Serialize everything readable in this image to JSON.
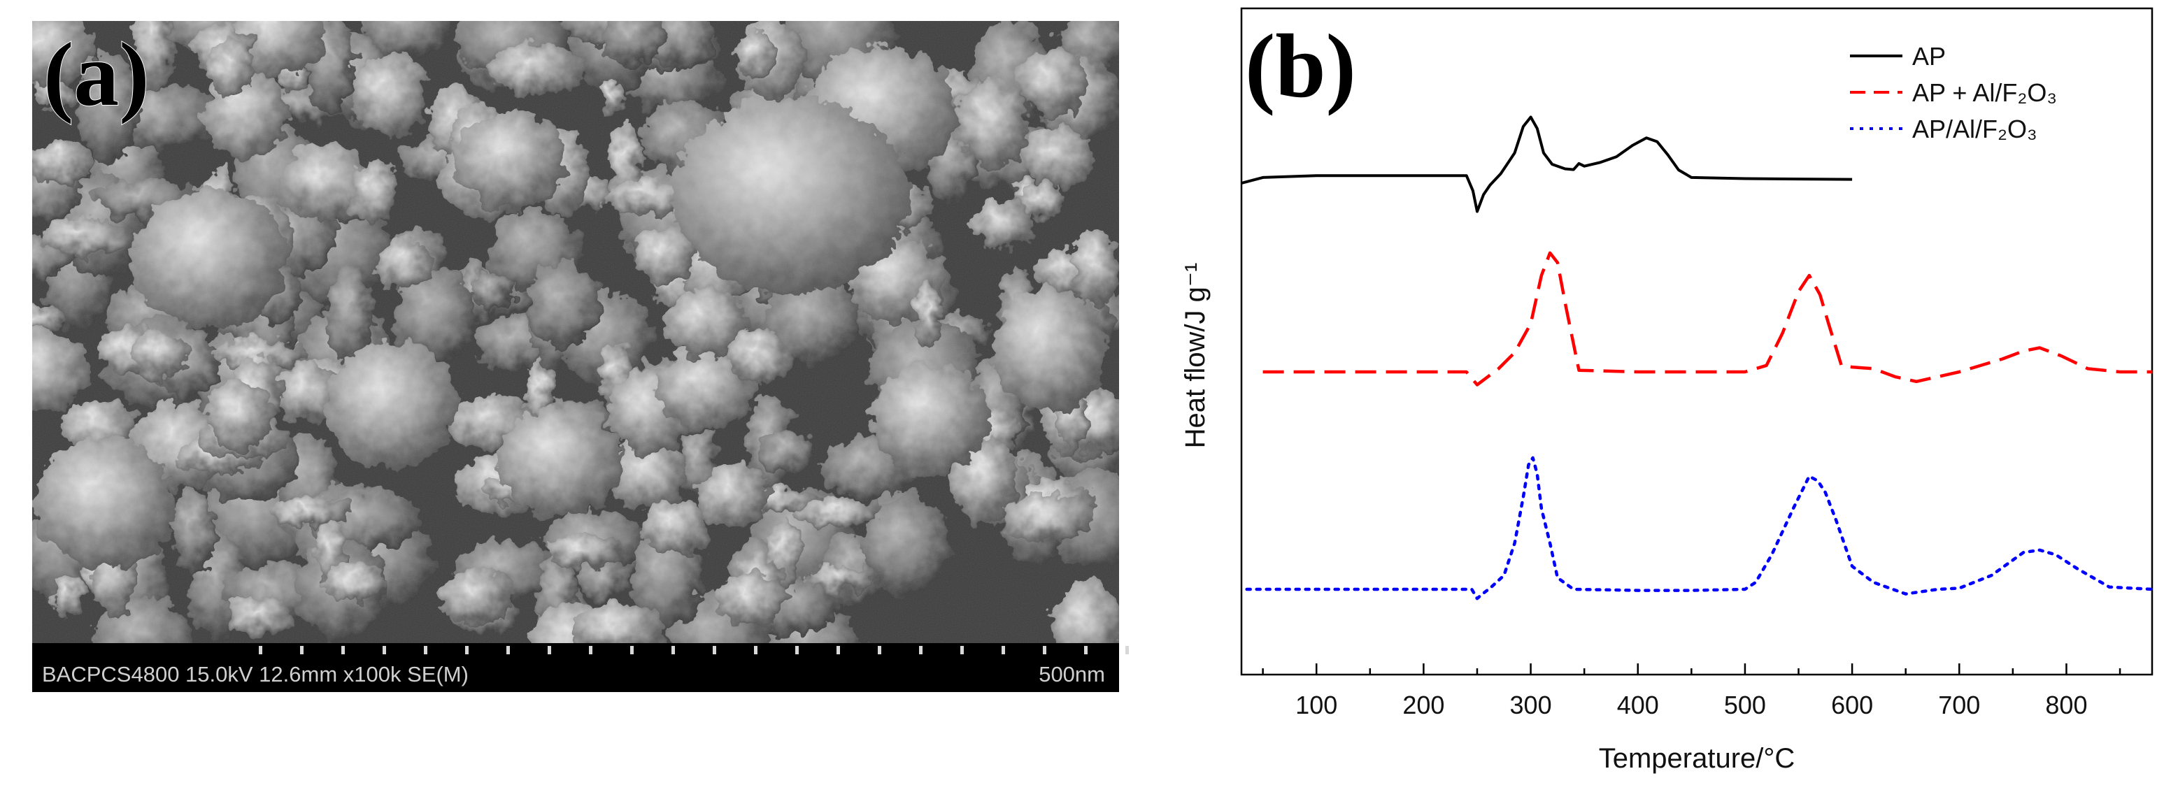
{
  "panels": {
    "a": {
      "label": "(a)",
      "info_bar": "BACPCS4800 15.0kV 12.6mm x100k SE(M)",
      "scale_label": "500nm"
    },
    "b": {
      "label": "(b)"
    }
  },
  "chart_data": {
    "type": "line",
    "title": "",
    "xlabel": "Temperature/°C",
    "ylabel": "Heat flow/J g⁻¹",
    "xlim": [
      30,
      880
    ],
    "xticks": [
      100,
      200,
      300,
      400,
      500,
      600,
      700,
      800
    ],
    "yticks_shown": false,
    "grid": false,
    "legend_position": "top-right",
    "series": [
      {
        "name": "AP",
        "color": "#000000",
        "style": "solid",
        "x": [
          30,
          50,
          100,
          150,
          200,
          240,
          246,
          250,
          256,
          262,
          272,
          285,
          293,
          300,
          306,
          312,
          320,
          332,
          340,
          345,
          350,
          365,
          380,
          395,
          408,
          418,
          428,
          438,
          450,
          500,
          550,
          600
        ],
        "y": [
          0,
          1.5,
          2.0,
          2.0,
          2.0,
          2.0,
          -2.0,
          -7.5,
          -3.0,
          -0.5,
          2.5,
          8.0,
          15.0,
          17.5,
          14.5,
          8.0,
          5.0,
          3.8,
          3.6,
          5.2,
          4.5,
          5.5,
          7.0,
          10.0,
          12.0,
          11.0,
          7.5,
          3.5,
          1.5,
          1.2,
          1.1,
          1.0
        ]
      },
      {
        "name": "AP + Al/F₂O₃",
        "color": "#ff0000",
        "style": "dashed",
        "x": [
          50,
          100,
          150,
          200,
          240,
          245,
          250,
          260,
          270,
          285,
          300,
          310,
          318,
          325,
          333,
          345,
          400,
          450,
          500,
          520,
          535,
          550,
          560,
          570,
          578,
          590,
          600,
          620,
          640,
          660,
          700,
          740,
          760,
          775,
          795,
          820,
          850,
          880
        ],
        "y": [
          0,
          0,
          0,
          0,
          0,
          -2.0,
          -4.0,
          -1.5,
          1.0,
          6.0,
          15.0,
          30.0,
          37.0,
          34.0,
          20.0,
          0.5,
          0,
          0,
          0,
          2.0,
          12.0,
          25.0,
          30.0,
          24.0,
          15.0,
          2.0,
          1.5,
          1.0,
          -1.5,
          -3.0,
          0,
          4.0,
          6.5,
          7.5,
          5.0,
          1.0,
          0,
          0
        ]
      },
      {
        "name": "AP/Al/F₂O₃",
        "color": "#0000ff",
        "style": "dotted",
        "x": [
          35,
          100,
          150,
          200,
          245,
          250,
          255,
          262,
          275,
          285,
          293,
          298,
          302,
          306,
          310,
          318,
          325,
          340,
          400,
          450,
          500,
          510,
          525,
          545,
          560,
          568,
          575,
          585,
          600,
          620,
          650,
          680,
          700,
          730,
          760,
          775,
          790,
          810,
          840,
          880
        ],
        "y": [
          0,
          0,
          0,
          0,
          0,
          -4.0,
          -2.0,
          0.5,
          6.0,
          20.0,
          40.0,
          54.0,
          57.0,
          50.0,
          35.0,
          20.0,
          5.0,
          0,
          -0.5,
          -0.5,
          0,
          3.0,
          15.0,
          35.0,
          49.0,
          47.0,
          42.0,
          30.0,
          10.0,
          3.0,
          -2.0,
          0,
          0.5,
          6.0,
          16.0,
          17.0,
          15.0,
          9.0,
          1.0,
          0
        ]
      }
    ]
  }
}
